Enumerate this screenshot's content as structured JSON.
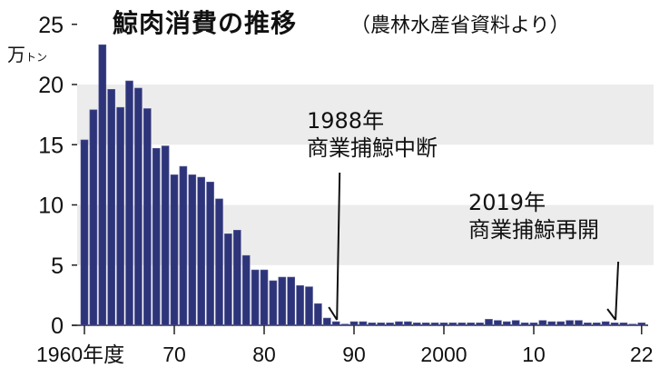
{
  "chart_data": {
    "type": "bar",
    "title": "鯨肉消費の推移",
    "subtitle": "（農林水産省資料より）",
    "ylabel": "万トン",
    "ylabel_main": "万",
    "ylabel_small": "トン",
    "xlabel": "年度",
    "ylim": [
      0,
      25
    ],
    "yticks": [
      0,
      5,
      10,
      15,
      20,
      25
    ],
    "xticks": [
      {
        "year": 1960,
        "label": "1960年度"
      },
      {
        "year": 1970,
        "label": "70"
      },
      {
        "year": 1980,
        "label": "80"
      },
      {
        "year": 1990,
        "label": "90"
      },
      {
        "year": 2000,
        "label": "2000"
      },
      {
        "year": 2010,
        "label": "10"
      },
      {
        "year": 2022,
        "label": "22"
      }
    ],
    "grid": "alternating gray bands",
    "bar_color": "#2e3479",
    "band_color": "#ececec",
    "x": [
      1960,
      1961,
      1962,
      1963,
      1964,
      1965,
      1966,
      1967,
      1968,
      1969,
      1970,
      1971,
      1972,
      1973,
      1974,
      1975,
      1976,
      1977,
      1978,
      1979,
      1980,
      1981,
      1982,
      1983,
      1984,
      1985,
      1986,
      1987,
      1988,
      1989,
      1990,
      1991,
      1992,
      1993,
      1994,
      1995,
      1996,
      1997,
      1998,
      1999,
      2000,
      2001,
      2002,
      2003,
      2004,
      2005,
      2006,
      2007,
      2008,
      2009,
      2010,
      2011,
      2012,
      2013,
      2014,
      2015,
      2016,
      2017,
      2018,
      2019,
      2020,
      2021,
      2022
    ],
    "values": [
      15.4,
      17.9,
      23.3,
      19.6,
      18.1,
      20.3,
      19.7,
      18.0,
      14.7,
      14.9,
      12.5,
      13.2,
      12.5,
      12.3,
      11.9,
      10.5,
      7.6,
      7.9,
      5.8,
      4.6,
      4.6,
      3.7,
      4.0,
      4.0,
      3.3,
      3.2,
      1.8,
      0.6,
      0.3,
      0.1,
      0.3,
      0.3,
      0.2,
      0.2,
      0.2,
      0.3,
      0.3,
      0.2,
      0.2,
      0.2,
      0.2,
      0.2,
      0.2,
      0.2,
      0.2,
      0.5,
      0.4,
      0.3,
      0.4,
      0.2,
      0.2,
      0.4,
      0.3,
      0.3,
      0.4,
      0.4,
      0.2,
      0.2,
      0.3,
      0.2,
      0.2,
      0.1,
      0.2
    ],
    "annotations": [
      {
        "year": 1988,
        "label1": "1988年",
        "label2": "商業捕鯨中断"
      },
      {
        "year": 2019,
        "label1": "2019年",
        "label2": "商業捕鯨再開"
      }
    ]
  }
}
